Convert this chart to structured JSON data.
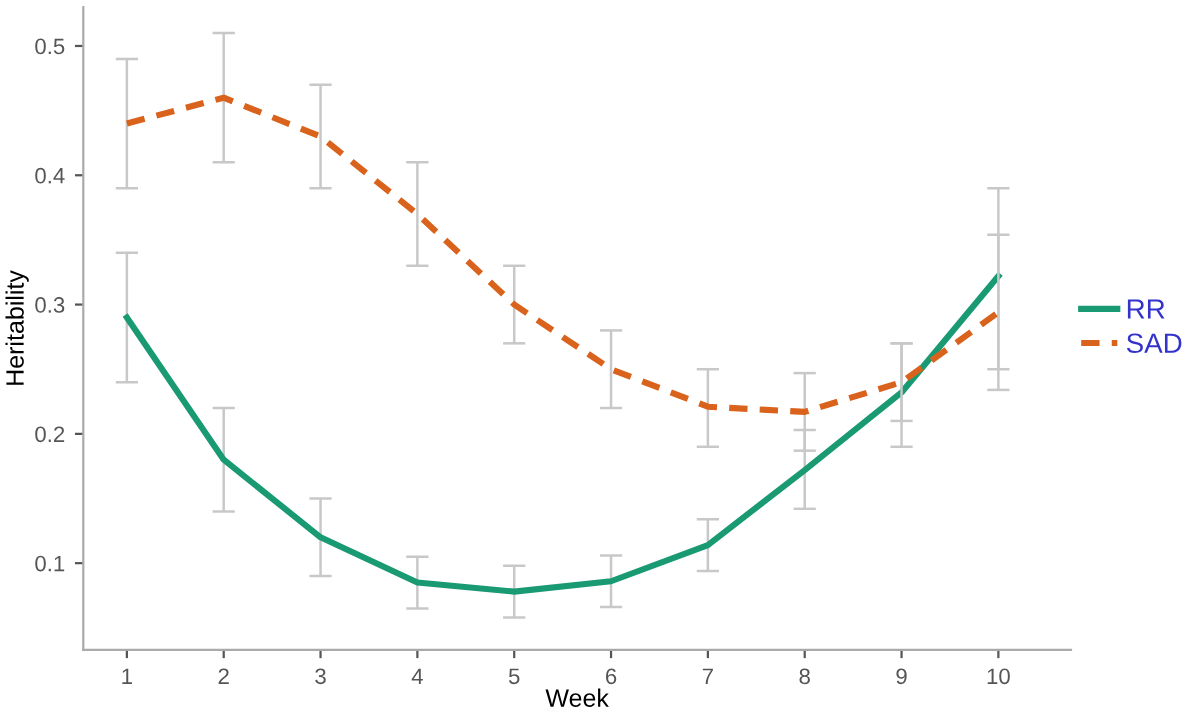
{
  "chart_data": {
    "type": "line",
    "xlabel": "Week",
    "ylabel": "Heritability",
    "x": [
      1,
      2,
      3,
      4,
      5,
      6,
      7,
      8,
      9,
      10
    ],
    "xlim": [
      0.55,
      10.75
    ],
    "ylim": [
      0.033,
      0.53
    ],
    "xticks": [
      1,
      2,
      3,
      4,
      5,
      6,
      7,
      8,
      9,
      10
    ],
    "yticks": [
      0.1,
      0.2,
      0.3,
      0.4,
      0.5
    ],
    "grid": false,
    "legend": "right",
    "marker": "none",
    "series": [
      {
        "name": "RR",
        "color": "#1a9a72",
        "line_style": "solid",
        "values": [
          0.29,
          0.18,
          0.12,
          0.085,
          0.078,
          0.086,
          0.114,
          0.172,
          0.232,
          0.322
        ],
        "errors": [
          [
            0.24,
            0.34
          ],
          [
            0.14,
            0.22
          ],
          [
            0.09,
            0.15
          ],
          [
            0.065,
            0.105
          ],
          [
            0.058,
            0.098
          ],
          [
            0.066,
            0.106
          ],
          [
            0.094,
            0.134
          ],
          [
            0.142,
            0.203
          ],
          [
            0.19,
            0.27
          ],
          [
            0.25,
            0.354
          ]
        ]
      },
      {
        "name": "SAD",
        "color": "#d9621c",
        "line_style": "dashed",
        "values": [
          0.44,
          0.46,
          0.43,
          0.37,
          0.3,
          0.25,
          0.221,
          0.217,
          0.24,
          0.294
        ],
        "errors": [
          [
            0.39,
            0.49
          ],
          [
            0.41,
            0.51
          ],
          [
            0.39,
            0.47
          ],
          [
            0.33,
            0.41
          ],
          [
            0.27,
            0.33
          ],
          [
            0.22,
            0.28
          ],
          [
            0.19,
            0.25
          ],
          [
            0.187,
            0.247
          ],
          [
            0.21,
            0.27
          ],
          [
            0.234,
            0.39
          ]
        ]
      }
    ]
  }
}
